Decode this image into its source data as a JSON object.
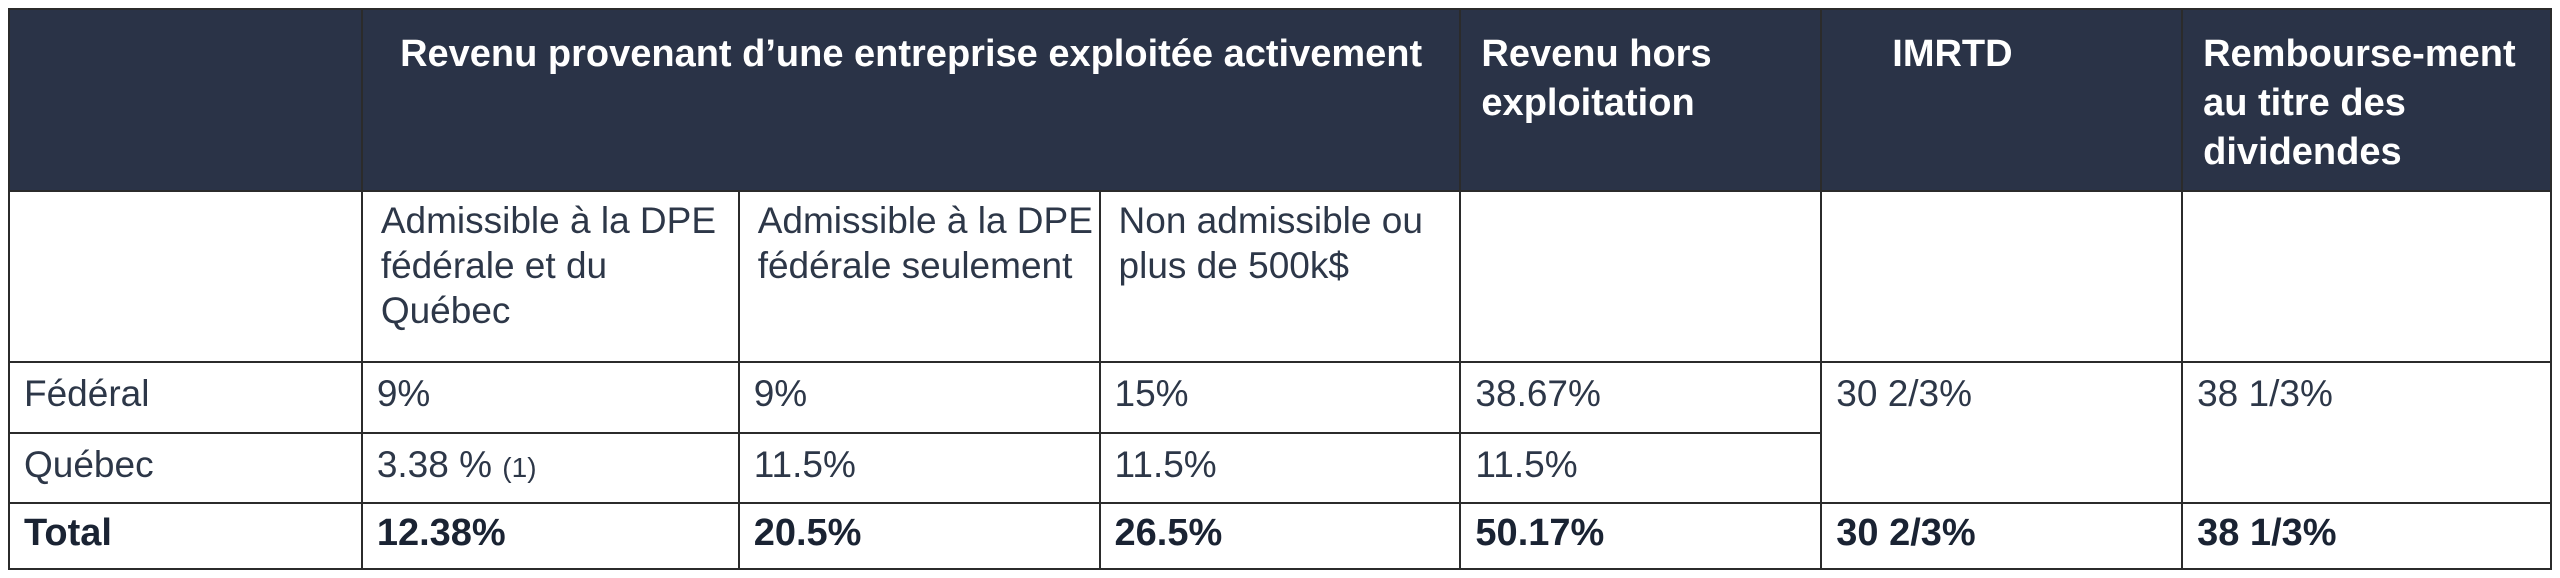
{
  "header": {
    "col_active_business": "Revenu provenant d’une entreprise exploitée activement",
    "col_non_operating": "Revenu hors exploitation",
    "col_imrtd": "IMRTD",
    "col_dividend_refund": "Rembourse-ment au titre des dividendes"
  },
  "subheader": {
    "sub_fed_qc": "Admissible à la DPE fédérale et du Québec",
    "sub_fed_only": "Admissible à la DPE fédérale seulement",
    "sub_non_eligible": "Non admissible ou plus de 500k$"
  },
  "rows": {
    "federal": {
      "label": "Fédéral",
      "fed_qc": "9%",
      "fed_only": "9%",
      "non_eligible": "15%",
      "non_operating": "38.67%",
      "imrtd": "30 2/3%",
      "dividend_refund": "38 1/3%"
    },
    "quebec": {
      "label": "Québec",
      "fed_qc": "3.38 %",
      "fed_qc_note": "(1)",
      "fed_only": "11.5%",
      "non_eligible": "11.5%",
      "non_operating": "11.5%"
    },
    "total": {
      "label": "Total",
      "fed_qc": "12.38%",
      "fed_only": "20.5%",
      "non_eligible": "26.5%",
      "non_operating": "50.17%",
      "imrtd": "30 2/3%",
      "dividend_refund": "38 1/3%"
    }
  },
  "colors": {
    "header_bg": "#2a3347",
    "header_text": "#ffffff",
    "body_text": "#2d3748",
    "border": "#2b2b2b"
  }
}
